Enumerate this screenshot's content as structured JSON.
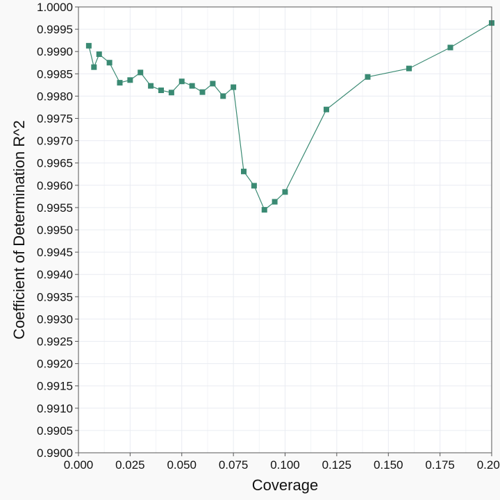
{
  "colors": {
    "page_background": "#f9f9f9",
    "panel_background": "#ffffff",
    "series": "#3a8a73",
    "grid": "#e9ecf2",
    "axis": "#555555"
  },
  "chart_data": {
    "type": "line",
    "title": "",
    "xlabel": "Coverage",
    "ylabel": "Coefficient of Determination R^2",
    "xlim": [
      0.0,
      0.2
    ],
    "ylim": [
      0.99,
      1.0
    ],
    "grid": true,
    "marker": "square",
    "x_ticks": [
      0.0,
      0.025,
      0.05,
      0.075,
      0.1,
      0.125,
      0.15,
      0.175,
      0.2
    ],
    "x_tick_labels": [
      "0.000",
      "0.025",
      "0.050",
      "0.075",
      "0.100",
      "0.125",
      "0.150",
      "0.175",
      "0.200"
    ],
    "y_ticks": [
      0.99,
      0.9905,
      0.991,
      0.9915,
      0.992,
      0.9925,
      0.993,
      0.9935,
      0.994,
      0.9945,
      0.995,
      0.9955,
      0.996,
      0.9965,
      0.997,
      0.9975,
      0.998,
      0.9985,
      0.999,
      0.9995,
      1.0
    ],
    "y_tick_labels": [
      "0.9900",
      "0.9905",
      "0.9910",
      "0.9915",
      "0.9920",
      "0.9925",
      "0.9930",
      "0.9935",
      "0.9940",
      "0.9945",
      "0.9950",
      "0.9955",
      "0.9960",
      "0.9965",
      "0.9970",
      "0.9975",
      "0.9980",
      "0.9985",
      "0.9990",
      "0.9995",
      "1.0000"
    ],
    "series": [
      {
        "x": [
          0.005,
          0.0075,
          0.01,
          0.015,
          0.02,
          0.025,
          0.03,
          0.035,
          0.04,
          0.045,
          0.05,
          0.055,
          0.06,
          0.065,
          0.07,
          0.075,
          0.08,
          0.085,
          0.09,
          0.095,
          0.1,
          0.12,
          0.14,
          0.16,
          0.18,
          0.2
        ],
        "y": [
          0.99913,
          0.99865,
          0.99894,
          0.99875,
          0.9983,
          0.99836,
          0.99853,
          0.99823,
          0.99813,
          0.99808,
          0.99833,
          0.99823,
          0.99809,
          0.99828,
          0.998,
          0.9982,
          0.99631,
          0.99599,
          0.99545,
          0.99563,
          0.99585,
          0.9977,
          0.99843,
          0.99862,
          0.99909,
          0.99964
        ]
      }
    ]
  }
}
